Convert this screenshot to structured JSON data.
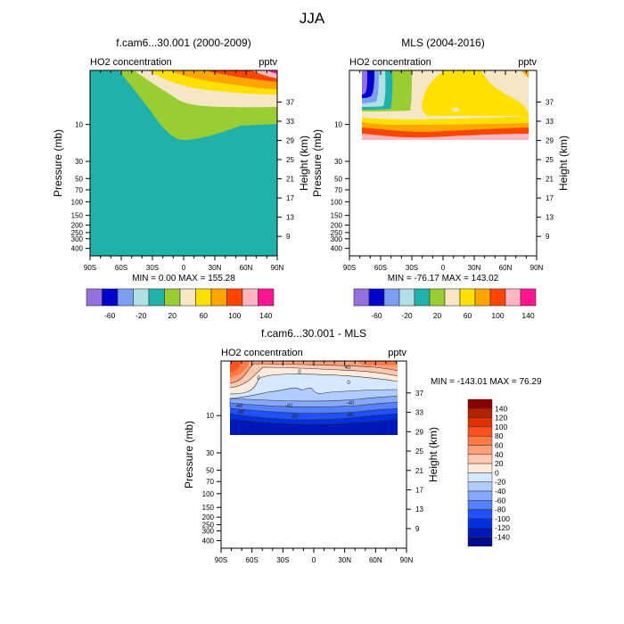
{
  "figure_title": "JJA",
  "chart_data": [
    {
      "type": "heatmap",
      "id": "model",
      "title": "f.cam6...30.001 (2000-2009)",
      "left_string": "HO2 concentration",
      "right_string": "pptv",
      "ylabel": "Pressure (mb)",
      "ylabel_right": "Height (km)",
      "x_ticks": [
        "90S",
        "60S",
        "30S",
        "0",
        "30N",
        "60N",
        "90N"
      ],
      "y_ticks": [
        "10",
        "30",
        "50",
        "70",
        "100",
        "150",
        "200",
        "250",
        "300",
        "400"
      ],
      "y_ticks_right": [
        "37",
        "33",
        "29",
        "25",
        "21",
        "17",
        "13",
        "9"
      ],
      "stats": "MIN =   0.00  MAX = 155.28",
      "colorbar_labels": [
        "-60",
        "-20",
        "20",
        "60",
        "100",
        "140"
      ],
      "colorbar_colors": [
        "#9370DB",
        "#0000CD",
        "#7B9EF0",
        "#B0E0E6",
        "#20B2AA",
        "#9ACD32",
        "#F5E6C4",
        "#FFE000",
        "#FFA500",
        "#FF4500",
        "#FFB6C1",
        "#FF1493"
      ],
      "levels": [
        -80,
        -60,
        -40,
        -20,
        0,
        20,
        40,
        60,
        80,
        100,
        120,
        140
      ],
      "ylim_mb": [
        500,
        2
      ],
      "xlim": [
        -90,
        90
      ]
    },
    {
      "type": "heatmap",
      "id": "obs",
      "title": "MLS (2004-2016)",
      "left_string": "HO2 concentration",
      "right_string": "pptv",
      "ylabel": "Pressure (mb)",
      "ylabel_right": "Height (km)",
      "x_ticks": [
        "90S",
        "60S",
        "30S",
        "0",
        "30N",
        "60N",
        "90N"
      ],
      "y_ticks": [
        "10",
        "30",
        "50",
        "70",
        "100",
        "150",
        "200",
        "250",
        "300",
        "400"
      ],
      "y_ticks_right": [
        "37",
        "33",
        "29",
        "25",
        "21",
        "17",
        "13",
        "9"
      ],
      "stats": "MIN = -76.17  MAX = 143.02",
      "colorbar_labels": [
        "-60",
        "-20",
        "20",
        "60",
        "100",
        "140"
      ],
      "colorbar_colors": [
        "#9370DB",
        "#0000CD",
        "#7B9EF0",
        "#B0E0E6",
        "#20B2AA",
        "#9ACD32",
        "#F5E6C4",
        "#FFE000",
        "#FFA500",
        "#FF4500",
        "#FFB6C1",
        "#FF1493"
      ],
      "levels": [
        -80,
        -60,
        -40,
        -20,
        0,
        20,
        40,
        60,
        80,
        100,
        120,
        140
      ],
      "ylim_mb": [
        500,
        2
      ],
      "xlim": [
        -90,
        90
      ]
    },
    {
      "type": "heatmap",
      "id": "diff",
      "title": "f.cam6...30.001 - MLS",
      "left_string": "HO2 concentration",
      "right_string": "pptv",
      "ylabel": "Pressure (mb)",
      "ylabel_right": "Height (km)",
      "x_ticks": [
        "90S",
        "60S",
        "30S",
        "0",
        "30N",
        "60N",
        "90N"
      ],
      "y_ticks": [
        "10",
        "30",
        "50",
        "70",
        "100",
        "150",
        "200",
        "250",
        "300",
        "400"
      ],
      "y_ticks_right": [
        "37",
        "33",
        "29",
        "25",
        "21",
        "17",
        "13",
        "9"
      ],
      "stats": "MIN = -143.01  MAX =  76.29",
      "contour_labels": [
        "40",
        "0",
        "0",
        "-40",
        "-40",
        "-40",
        "-80",
        "-80",
        "-80",
        "0"
      ],
      "colorbar_labels": [
        "140",
        "120",
        "100",
        "80",
        "60",
        "40",
        "20",
        "0",
        "-20",
        "-40",
        "-60",
        "-80",
        "-100",
        "-120",
        "-140"
      ],
      "colorbar_colors": [
        "#8B0000",
        "#B22200",
        "#E03000",
        "#FF5020",
        "#FF7A45",
        "#FFA07A",
        "#FFC8AE",
        "#FFEBDC",
        "#D6E8FF",
        "#B0CCFF",
        "#87A8FF",
        "#5580FF",
        "#2050FF",
        "#0030E0",
        "#0018B8",
        "#000C8C"
      ],
      "ylim_mb": [
        500,
        2
      ],
      "xlim": [
        -90,
        90
      ]
    }
  ]
}
